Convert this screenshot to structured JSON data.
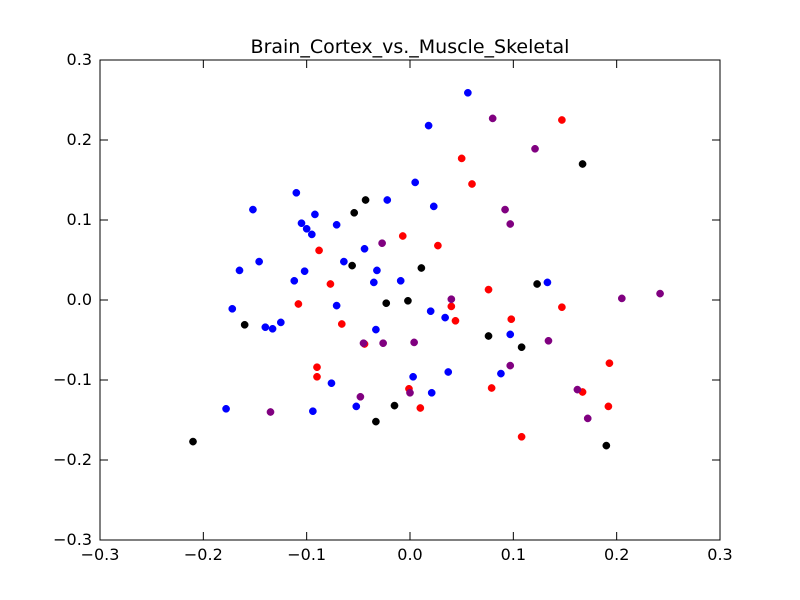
{
  "chart_data": {
    "type": "scatter",
    "title": "Brain_Cortex_vs._Muscle_Skeletal",
    "xlabel": "",
    "ylabel": "",
    "xlim": [
      -0.3,
      0.3
    ],
    "ylim": [
      -0.3,
      0.3
    ],
    "x_ticks": [
      -0.3,
      -0.2,
      -0.1,
      0.0,
      0.1,
      0.2,
      0.3
    ],
    "x_tick_labels": [
      "−0.3",
      "−0.2",
      "−0.1",
      "0.0",
      "0.1",
      "0.2",
      "0.3"
    ],
    "y_ticks": [
      0.3,
      0.2,
      0.1,
      0.0,
      -0.1,
      -0.2,
      -0.3
    ],
    "y_tick_labels": [
      "0.3",
      "0.2",
      "0.1",
      "0.0",
      "−0.1",
      "−0.2",
      "−0.3"
    ],
    "grid": false,
    "series": [
      {
        "color": "#0000ff",
        "points": [
          [
            0.056,
            0.259
          ],
          [
            0.018,
            0.218
          ],
          [
            0.005,
            0.147
          ],
          [
            -0.11,
            0.134
          ],
          [
            -0.152,
            0.113
          ],
          [
            -0.022,
            0.125
          ],
          [
            0.023,
            0.117
          ],
          [
            -0.092,
            0.107
          ],
          [
            -0.105,
            0.096
          ],
          [
            -0.071,
            0.094
          ],
          [
            -0.1,
            0.089
          ],
          [
            -0.095,
            0.082
          ],
          [
            -0.044,
            0.064
          ],
          [
            -0.146,
            0.048
          ],
          [
            -0.064,
            0.048
          ],
          [
            -0.165,
            0.037
          ],
          [
            -0.102,
            0.036
          ],
          [
            -0.032,
            0.037
          ],
          [
            -0.112,
            0.024
          ],
          [
            -0.035,
            0.022
          ],
          [
            -0.009,
            0.024
          ],
          [
            0.133,
            0.022
          ],
          [
            -0.071,
            -0.007
          ],
          [
            -0.172,
            -0.011
          ],
          [
            0.02,
            -0.014
          ],
          [
            0.034,
            -0.022
          ],
          [
            -0.125,
            -0.028
          ],
          [
            -0.14,
            -0.034
          ],
          [
            -0.133,
            -0.036
          ],
          [
            -0.033,
            -0.037
          ],
          [
            0.097,
            -0.043
          ],
          [
            0.037,
            -0.09
          ],
          [
            0.088,
            -0.092
          ],
          [
            0.003,
            -0.096
          ],
          [
            -0.076,
            -0.104
          ],
          [
            0.021,
            -0.116
          ],
          [
            -0.178,
            -0.136
          ],
          [
            -0.094,
            -0.139
          ],
          [
            -0.052,
            -0.133
          ]
        ]
      },
      {
        "color": "#ff0000",
        "points": [
          [
            0.147,
            0.225
          ],
          [
            0.05,
            0.177
          ],
          [
            0.06,
            0.145
          ],
          [
            -0.007,
            0.08
          ],
          [
            0.027,
            0.068
          ],
          [
            -0.088,
            0.062
          ],
          [
            -0.077,
            0.02
          ],
          [
            0.076,
            0.013
          ],
          [
            -0.108,
            -0.005
          ],
          [
            0.04,
            -0.008
          ],
          [
            0.147,
            -0.009
          ],
          [
            0.044,
            -0.026
          ],
          [
            0.098,
            -0.024
          ],
          [
            -0.066,
            -0.03
          ],
          [
            -0.044,
            -0.055
          ],
          [
            0.193,
            -0.079
          ],
          [
            -0.09,
            -0.084
          ],
          [
            -0.09,
            -0.096
          ],
          [
            0.079,
            -0.11
          ],
          [
            -0.001,
            -0.111
          ],
          [
            0.167,
            -0.115
          ],
          [
            0.192,
            -0.133
          ],
          [
            0.01,
            -0.135
          ],
          [
            0.108,
            -0.171
          ]
        ]
      },
      {
        "color": "#800080",
        "points": [
          [
            0.08,
            0.227
          ],
          [
            0.121,
            0.189
          ],
          [
            0.092,
            0.113
          ],
          [
            0.097,
            0.095
          ],
          [
            -0.027,
            0.071
          ],
          [
            0.205,
            0.002
          ],
          [
            0.242,
            0.008
          ],
          [
            0.04,
            0.001
          ],
          [
            0.134,
            -0.051
          ],
          [
            0.004,
            -0.053
          ],
          [
            -0.026,
            -0.054
          ],
          [
            0.097,
            -0.082
          ],
          [
            -0.045,
            -0.054
          ],
          [
            0.162,
            -0.112
          ],
          [
            0.0,
            -0.116
          ],
          [
            -0.048,
            -0.121
          ],
          [
            0.172,
            -0.148
          ],
          [
            -0.135,
            -0.14
          ]
        ]
      },
      {
        "color": "#000000",
        "points": [
          [
            0.167,
            0.17
          ],
          [
            -0.043,
            0.125
          ],
          [
            -0.054,
            0.109
          ],
          [
            -0.056,
            0.043
          ],
          [
            0.011,
            0.04
          ],
          [
            0.123,
            0.02
          ],
          [
            -0.16,
            -0.031
          ],
          [
            -0.023,
            -0.004
          ],
          [
            -0.002,
            -0.001
          ],
          [
            0.076,
            -0.045
          ],
          [
            0.108,
            -0.059
          ],
          [
            -0.033,
            -0.152
          ],
          [
            -0.015,
            -0.132
          ],
          [
            0.19,
            -0.182
          ],
          [
            -0.21,
            -0.177
          ]
        ]
      }
    ]
  }
}
